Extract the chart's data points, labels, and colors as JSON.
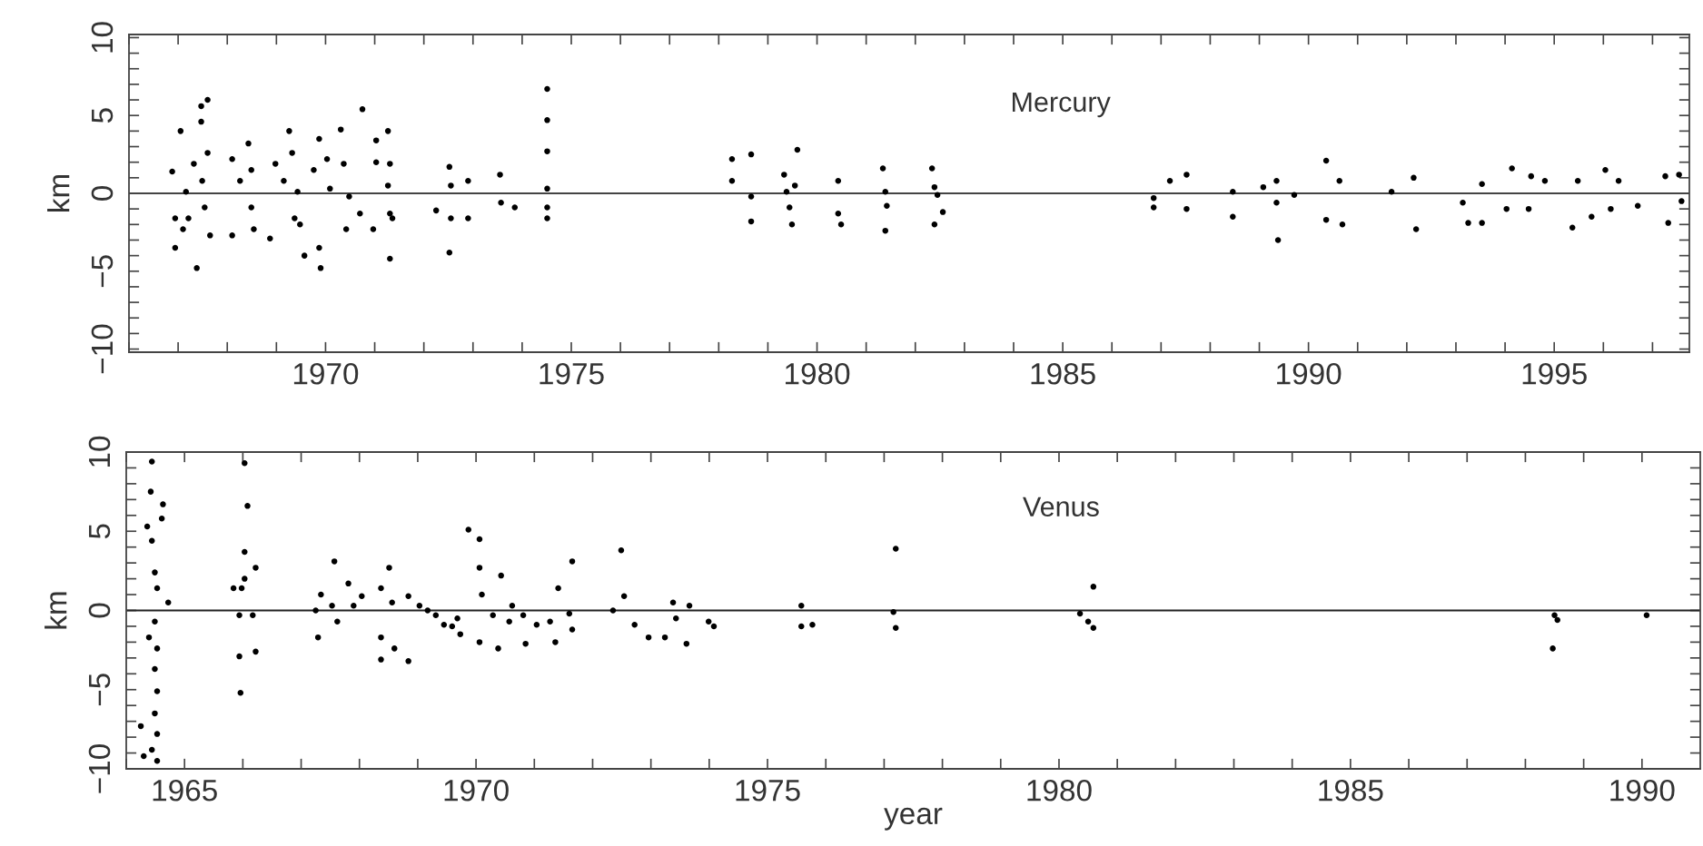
{
  "chart_data": [
    {
      "type": "scatter",
      "title": "Mercury",
      "ylabel": "km",
      "marker": "circle",
      "grid": false,
      "legend": false,
      "xlim": [
        1966,
        1997.75
      ],
      "ylim": [
        -10.2,
        10.2
      ],
      "xticks": [
        {
          "value": 1966,
          "label": null
        },
        {
          "value": 1967,
          "label": null
        },
        {
          "value": 1968,
          "label": null
        },
        {
          "value": 1969,
          "label": null
        },
        1970,
        {
          "value": 1971,
          "label": null
        },
        {
          "value": 1972,
          "label": null
        },
        {
          "value": 1973,
          "label": null
        },
        {
          "value": 1974,
          "label": null
        },
        1975,
        {
          "value": 1976,
          "label": null
        },
        {
          "value": 1977,
          "label": null
        },
        {
          "value": 1978,
          "label": null
        },
        {
          "value": 1979,
          "label": null
        },
        1980,
        {
          "value": 1981,
          "label": null
        },
        {
          "value": 1982,
          "label": null
        },
        {
          "value": 1983,
          "label": null
        },
        {
          "value": 1984,
          "label": null
        },
        1985,
        {
          "value": 1986,
          "label": null
        },
        {
          "value": 1987,
          "label": null
        },
        {
          "value": 1988,
          "label": null
        },
        {
          "value": 1989,
          "label": null
        },
        1990,
        {
          "value": 1991,
          "label": null
        },
        {
          "value": 1992,
          "label": null
        },
        {
          "value": 1993,
          "label": null
        },
        {
          "value": 1994,
          "label": null
        },
        1995,
        {
          "value": 1996,
          "label": null
        },
        {
          "value": 1997,
          "label": null
        }
      ],
      "yticks": [
        {
          "value": -10,
          "label": "−10"
        },
        {
          "value": -9,
          "label": null
        },
        {
          "value": -8,
          "label": null
        },
        {
          "value": -7,
          "label": null
        },
        {
          "value": -6,
          "label": null
        },
        {
          "value": -5,
          "label": "−5"
        },
        {
          "value": -4,
          "label": null
        },
        {
          "value": -3,
          "label": null
        },
        {
          "value": -2,
          "label": null
        },
        {
          "value": -1,
          "label": null
        },
        0,
        {
          "value": 1,
          "label": null
        },
        {
          "value": 2,
          "label": null
        },
        {
          "value": 3,
          "label": null
        },
        {
          "value": 4,
          "label": null
        },
        5,
        {
          "value": 6,
          "label": null
        },
        {
          "value": 7,
          "label": null
        },
        {
          "value": 8,
          "label": null
        },
        {
          "value": 9,
          "label": null
        },
        10
      ],
      "ref_lines": [
        {
          "axis": "y",
          "value": 0,
          "color": "#444444"
        }
      ],
      "series": [
        {
          "color": "#000000",
          "x": [
            1966.88,
            1966.94,
            1967.05,
            1967.38,
            1967.47,
            1967.47,
            1967.6,
            1967.16,
            1967.21,
            1967.32,
            1967.49,
            1967.6,
            1967.65,
            1967.54,
            1966.94,
            1967.1,
            1968.1,
            1968.1,
            1968.26,
            1968.43,
            1968.49,
            1968.54,
            1968.49,
            1968.87,
            1968.98,
            1969.26,
            1969.32,
            1969.37,
            1969.43,
            1969.48,
            1969.57,
            1969.15,
            1969.87,
            1969.9,
            1969.87,
            1969.76,
            1970.03,
            1970.09,
            1970.31,
            1970.37,
            1970.48,
            1970.42,
            1970.7,
            1970.75,
            1971.03,
            1971.03,
            1970.97,
            1971.27,
            1971.31,
            1971.27,
            1971.31,
            1971.31,
            1971.36,
            1972.25,
            1972.52,
            1972.55,
            1972.52,
            1972.55,
            1972.9,
            1972.9,
            1973.55,
            1973.57,
            1973.85,
            1974.51,
            1974.51,
            1974.51,
            1974.51,
            1974.51,
            1974.51,
            1978.27,
            1978.27,
            1978.66,
            1978.66,
            1978.66,
            1979.33,
            1979.38,
            1979.44,
            1979.49,
            1979.6,
            1979.55,
            1980.43,
            1980.43,
            1980.49,
            1981.34,
            1981.39,
            1981.42,
            1981.39,
            1982.34,
            1982.39,
            1982.45,
            1982.39,
            1982.56,
            1986.85,
            1986.85,
            1987.18,
            1987.52,
            1987.52,
            1988.46,
            1988.46,
            1989.08,
            1989.35,
            1989.35,
            1989.38,
            1989.71,
            1990.36,
            1990.36,
            1990.63,
            1990.69,
            1991.69,
            1992.14,
            1992.19,
            1993.14,
            1993.25,
            1993.53,
            1993.53,
            1994.03,
            1994.14,
            1994.53,
            1994.48,
            1994.81,
            1995.37,
            1995.48,
            1995.76,
            1996.04,
            1996.15,
            1996.31,
            1996.7,
            1997.26,
            1997.32,
            1997.54,
            1997.59
          ],
          "values": [
            1.4,
            -3.5,
            4.0,
            -4.8,
            4.6,
            5.6,
            6.0,
            0.1,
            -1.6,
            1.9,
            0.8,
            2.6,
            -2.7,
            -0.9,
            -1.6,
            -2.3,
            2.2,
            -2.7,
            0.8,
            3.2,
            -0.9,
            -2.3,
            1.5,
            -2.9,
            1.9,
            4.0,
            2.6,
            -1.6,
            0.1,
            -2.0,
            -4.0,
            0.8,
            3.5,
            -4.8,
            -3.5,
            1.5,
            2.2,
            0.3,
            4.1,
            1.9,
            -0.2,
            -2.3,
            -1.3,
            5.4,
            3.4,
            2.0,
            -2.3,
            4.0,
            1.9,
            0.5,
            -1.3,
            -4.2,
            -1.6,
            -1.1,
            1.7,
            0.5,
            -3.8,
            -1.6,
            0.8,
            -1.6,
            1.2,
            -0.6,
            -0.9,
            6.7,
            4.7,
            2.7,
            0.3,
            -0.9,
            -1.6,
            2.2,
            0.8,
            2.5,
            -0.2,
            -1.8,
            1.2,
            0.1,
            -0.9,
            -2.0,
            2.8,
            0.5,
            0.8,
            -1.3,
            -2.0,
            1.6,
            0.1,
            -0.8,
            -2.4,
            1.6,
            0.4,
            -0.1,
            -2.0,
            -1.2,
            -0.3,
            -0.9,
            0.8,
            1.2,
            -1.0,
            0.1,
            -1.5,
            0.4,
            0.8,
            -0.6,
            -3.0,
            -0.1,
            2.1,
            -1.7,
            0.8,
            -2.0,
            0.1,
            1.0,
            -2.3,
            -0.6,
            -1.9,
            0.6,
            -1.9,
            -1.0,
            1.6,
            1.1,
            -1.0,
            0.8,
            -2.2,
            0.8,
            -1.5,
            1.5,
            -1.0,
            0.8,
            -0.8,
            1.1,
            -1.9,
            1.2,
            -0.5
          ]
        }
      ]
    },
    {
      "type": "scatter",
      "title": "Venus",
      "xlabel": "year",
      "ylabel": "km",
      "marker": "circle",
      "grid": false,
      "legend": false,
      "xlim": [
        1964,
        1991
      ],
      "ylim": [
        -10,
        10
      ],
      "xticks": [
        {
          "value": 1964,
          "label": null
        },
        1965,
        {
          "value": 1966,
          "label": null
        },
        {
          "value": 1967,
          "label": null
        },
        {
          "value": 1968,
          "label": null
        },
        {
          "value": 1969,
          "label": null
        },
        1970,
        {
          "value": 1971,
          "label": null
        },
        {
          "value": 1972,
          "label": null
        },
        {
          "value": 1973,
          "label": null
        },
        {
          "value": 1974,
          "label": null
        },
        1975,
        {
          "value": 1976,
          "label": null
        },
        {
          "value": 1977,
          "label": null
        },
        {
          "value": 1978,
          "label": null
        },
        {
          "value": 1979,
          "label": null
        },
        1980,
        {
          "value": 1981,
          "label": null
        },
        {
          "value": 1982,
          "label": null
        },
        {
          "value": 1983,
          "label": null
        },
        {
          "value": 1984,
          "label": null
        },
        1985,
        {
          "value": 1986,
          "label": null
        },
        {
          "value": 1987,
          "label": null
        },
        {
          "value": 1988,
          "label": null
        },
        {
          "value": 1989,
          "label": null
        },
        1990
      ],
      "yticks": [
        {
          "value": -10,
          "label": "−10"
        },
        {
          "value": -9,
          "label": null
        },
        {
          "value": -8,
          "label": null
        },
        {
          "value": -7,
          "label": null
        },
        {
          "value": -6,
          "label": null
        },
        {
          "value": -5,
          "label": "−5"
        },
        {
          "value": -4,
          "label": null
        },
        {
          "value": -3,
          "label": null
        },
        {
          "value": -2,
          "label": null
        },
        {
          "value": -1,
          "label": null
        },
        0,
        {
          "value": 1,
          "label": null
        },
        {
          "value": 2,
          "label": null
        },
        {
          "value": 3,
          "label": null
        },
        {
          "value": 4,
          "label": null
        },
        5,
        {
          "value": 6,
          "label": null
        },
        {
          "value": 7,
          "label": null
        },
        {
          "value": 8,
          "label": null
        },
        {
          "value": 9,
          "label": null
        },
        10
      ],
      "ref_lines": [
        {
          "axis": "y",
          "value": 0,
          "color": "#222222"
        }
      ],
      "series": [
        {
          "color": "#000000",
          "x": [
            1964.44,
            1964.42,
            1964.36,
            1964.44,
            1964.49,
            1964.53,
            1964.61,
            1964.63,
            1964.72,
            1964.49,
            1964.53,
            1964.49,
            1964.53,
            1964.49,
            1964.53,
            1964.44,
            1964.53,
            1964.25,
            1964.3,
            1964.39,
            1966.03,
            1966.08,
            1966.03,
            1966.03,
            1965.98,
            1965.94,
            1965.94,
            1965.96,
            1966.22,
            1966.17,
            1966.22,
            1965.84,
            1967.57,
            1967.25,
            1967.34,
            1967.29,
            1967.53,
            1967.62,
            1967.81,
            1967.9,
            1968.04,
            1968.37,
            1968.37,
            1968.37,
            1968.51,
            1968.56,
            1968.6,
            1968.84,
            1968.84,
            1969.03,
            1969.17,
            1969.31,
            1969.45,
            1969.59,
            1969.73,
            1969.68,
            1969.87,
            1970.06,
            1970.06,
            1970.1,
            1970.06,
            1970.29,
            1970.38,
            1970.43,
            1970.62,
            1970.57,
            1970.85,
            1970.81,
            1971.04,
            1971.27,
            1971.36,
            1971.41,
            1971.65,
            1971.65,
            1971.6,
            1972.35,
            1972.49,
            1972.54,
            1972.72,
            1972.96,
            1973.24,
            1973.38,
            1973.43,
            1973.61,
            1973.66,
            1973.99,
            1974.08,
            1975.58,
            1975.58,
            1975.77,
            1977.16,
            1977.2,
            1977.2,
            1980.36,
            1980.5,
            1980.59,
            1980.59,
            1988.5,
            1988.55,
            1988.47,
            1990.08
          ],
          "values": [
            9.4,
            7.5,
            5.3,
            4.4,
            2.4,
            1.4,
            5.8,
            6.7,
            0.5,
            -0.7,
            -2.4,
            -3.7,
            -5.1,
            -6.5,
            -7.8,
            -8.8,
            -9.5,
            -7.3,
            -9.2,
            -1.7,
            9.3,
            6.6,
            3.7,
            2.0,
            1.4,
            -0.3,
            -2.9,
            -5.2,
            2.7,
            -0.3,
            -2.6,
            1.4,
            3.1,
            0.0,
            1.0,
            -1.7,
            0.3,
            -0.7,
            1.7,
            0.3,
            0.9,
            1.4,
            -1.7,
            -3.1,
            2.7,
            0.5,
            -2.4,
            -3.2,
            0.9,
            0.3,
            0.0,
            -0.3,
            -0.9,
            -1.0,
            -1.5,
            -0.5,
            5.1,
            4.5,
            2.7,
            1.0,
            -2.0,
            -0.3,
            -2.4,
            2.2,
            0.3,
            -0.7,
            -2.1,
            -0.3,
            -0.9,
            -0.7,
            -2.0,
            1.4,
            3.1,
            -1.2,
            -0.2,
            0.0,
            3.8,
            0.9,
            -0.9,
            -1.7,
            -1.7,
            0.5,
            -0.5,
            -2.1,
            0.3,
            -0.7,
            -1.0,
            0.3,
            -1.0,
            -0.9,
            -0.1,
            -1.1,
            3.9,
            -0.2,
            -0.7,
            -1.1,
            1.5,
            -0.3,
            -0.6,
            -2.4,
            -0.3
          ]
        }
      ]
    }
  ]
}
